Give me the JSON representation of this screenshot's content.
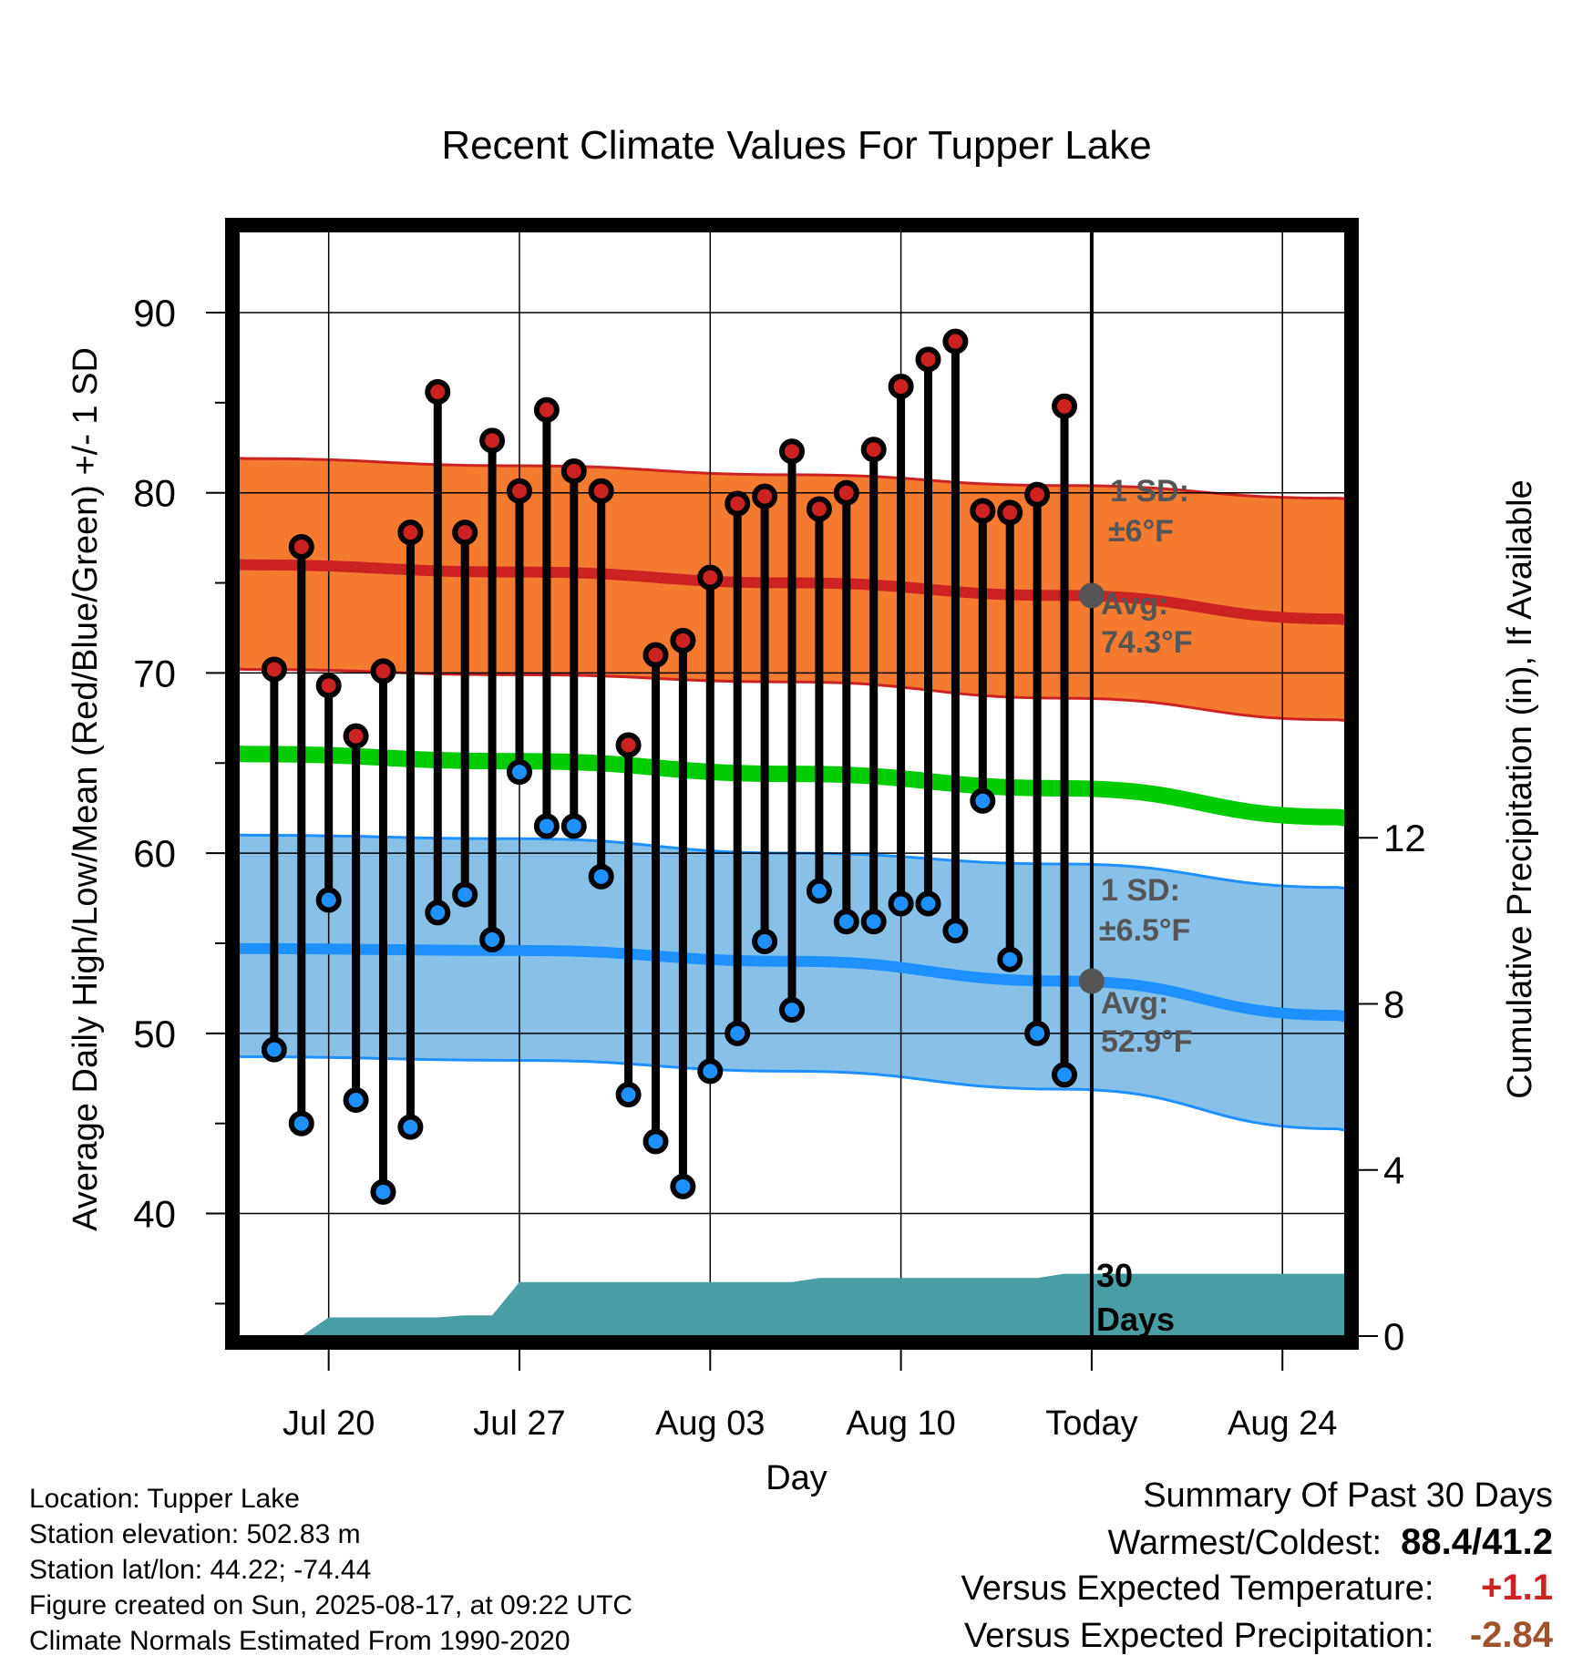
{
  "chart_data": {
    "type": "line",
    "title": "Recent Climate Values For Tupper Lake",
    "xlabel": "Day",
    "ylabel": "Average Daily High/Low/Mean (Red/Blue/Green) +/- 1 SD",
    "y2label": "Cumulative Precipitation (in), If Available",
    "ylim": [
      33.2,
      94.5
    ],
    "y2lim": [
      0,
      26.6
    ],
    "yticks": [
      40,
      50,
      60,
      70,
      80,
      90
    ],
    "y2ticks": [
      0,
      4,
      8,
      12
    ],
    "x_labels": [
      {
        "day": 3,
        "label": "Jul 20"
      },
      {
        "day": 10,
        "label": "Jul 27"
      },
      {
        "day": 17,
        "label": "Aug 03"
      },
      {
        "day": 24,
        "label": "Aug 10"
      },
      {
        "day": 31,
        "label": "Today"
      },
      {
        "day": 38,
        "label": "Aug 24"
      }
    ],
    "xlim": [
      -0.3,
      40.3
    ],
    "days": [
      1,
      2,
      3,
      4,
      5,
      6,
      7,
      8,
      9,
      10,
      11,
      12,
      13,
      14,
      15,
      16,
      17,
      18,
      19,
      20,
      21,
      22,
      23,
      24,
      25,
      26,
      27,
      28,
      29,
      30
    ],
    "daily_high": [
      70.2,
      77.0,
      69.3,
      66.5,
      70.1,
      77.8,
      85.6,
      77.8,
      82.9,
      80.1,
      84.6,
      81.2,
      80.1,
      66.0,
      71.0,
      71.8,
      75.3,
      79.4,
      79.8,
      82.3,
      79.1,
      80.0,
      82.4,
      85.9,
      87.4,
      88.4,
      79.0,
      78.9,
      79.9,
      84.8
    ],
    "daily_low": [
      49.1,
      45.0,
      57.4,
      46.3,
      41.2,
      44.8,
      56.7,
      57.7,
      55.2,
      64.5,
      61.5,
      61.5,
      58.7,
      46.6,
      44.0,
      41.5,
      47.9,
      50.0,
      55.1,
      51.3,
      57.9,
      56.2,
      56.2,
      57.2,
      57.2,
      55.7,
      62.9,
      54.1,
      50.0,
      47.7
    ],
    "normal_high": {
      "days": [
        0,
        10,
        20,
        30,
        40
      ],
      "values": [
        76.0,
        75.6,
        75.0,
        74.3,
        73.0
      ]
    },
    "normal_high_upper": {
      "days": [
        0,
        10,
        20,
        30,
        40
      ],
      "values": [
        81.9,
        81.5,
        81.0,
        80.4,
        79.7
      ]
    },
    "normal_high_lower": {
      "days": [
        0,
        10,
        20,
        30,
        40
      ],
      "values": [
        70.2,
        69.9,
        69.5,
        68.6,
        67.4
      ]
    },
    "normal_mean": {
      "days": [
        0,
        10,
        20,
        30,
        40
      ],
      "values": [
        65.5,
        65.1,
        64.4,
        63.6,
        62.0
      ]
    },
    "normal_low": {
      "days": [
        0,
        10,
        20,
        30,
        40
      ],
      "values": [
        54.7,
        54.6,
        54.0,
        52.9,
        51.0
      ]
    },
    "normal_low_upper": {
      "days": [
        0,
        10,
        20,
        30,
        40
      ],
      "values": [
        61.0,
        60.8,
        60.0,
        59.4,
        58.1
      ]
    },
    "normal_low_lower": {
      "days": [
        0,
        10,
        20,
        30,
        40
      ],
      "values": [
        48.7,
        48.5,
        47.9,
        46.9,
        44.7
      ]
    },
    "precip_cumulative": {
      "days": [
        -0.3,
        2,
        3,
        7,
        8,
        9,
        10,
        20,
        21,
        29,
        30,
        31,
        40.3
      ],
      "values": [
        0,
        0,
        0.45,
        0.45,
        0.5,
        0.5,
        1.3,
        1.3,
        1.4,
        1.4,
        1.5,
        1.5,
        1.5
      ]
    },
    "today_day": 31,
    "annotations": {
      "high_sd_label": "1 SD:",
      "high_sd_value": "±6°F",
      "high_avg_label": "Avg:",
      "high_avg_value": "74.3°F",
      "low_sd_label": "1 SD:",
      "low_sd_value": "±6.5°F",
      "low_avg_label": "Avg:",
      "low_avg_value": "52.9°F",
      "days_label_1": "30",
      "days_label_2": "Days"
    },
    "colors": {
      "high": "#cc2222",
      "high_band": "#f47a30",
      "mean": "#00cc00",
      "low": "#1e90ff",
      "low_band": "#87c1e8",
      "precip": "#489ea3",
      "annotation": "#555555"
    }
  },
  "footer": {
    "location": "Location: Tupper Lake",
    "elevation": "Station elevation: 502.83 m",
    "latlon": "Station lat/lon: 44.22; -74.44",
    "created": "Figure created on Sun, 2025-08-17, at 09:22 UTC",
    "normals": "Climate Normals Estimated From 1990-2020"
  },
  "summary": {
    "title": "Summary Of Past 30 Days",
    "warm_cold_label": "Warmest/Coldest:",
    "warm_cold_value": "88.4/41.2",
    "temp_label": "Versus Expected Temperature:",
    "temp_value": "+1.1",
    "temp_color": "#cc2222",
    "precip_label": "Versus Expected Precipitation:",
    "precip_value": "-2.84",
    "precip_color": "#a0522d"
  }
}
